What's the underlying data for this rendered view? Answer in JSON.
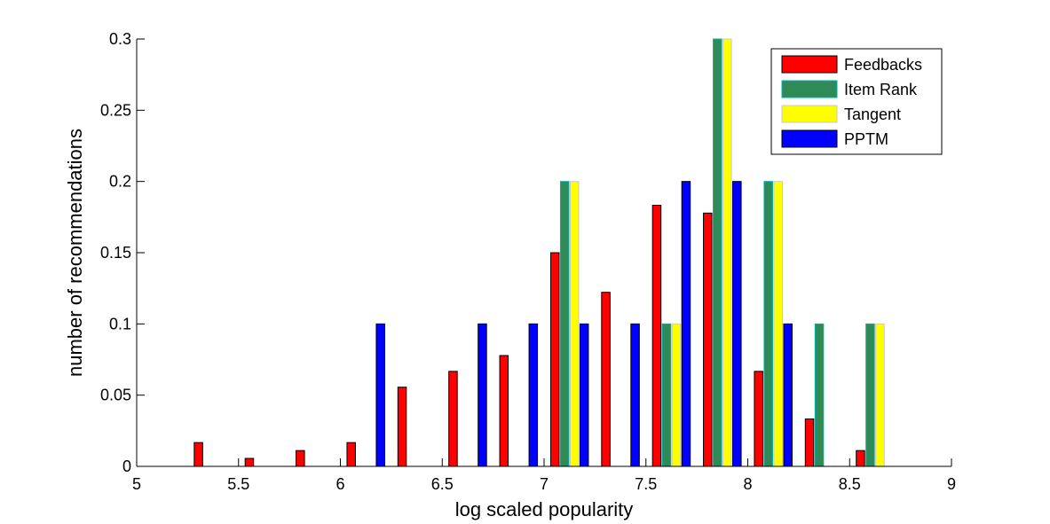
{
  "chart_data": {
    "type": "bar",
    "title": "",
    "xlabel": "log scaled popularity",
    "ylabel": "number of recommendations",
    "xlim": [
      5,
      9
    ],
    "ylim": [
      0,
      0.3
    ],
    "xticks": [
      5,
      5.5,
      6,
      6.5,
      7,
      7.5,
      8,
      8.5,
      9
    ],
    "xtick_labels": [
      "5",
      "5.5",
      "6",
      "6.5",
      "7",
      "7.5",
      "8",
      "8.5",
      "9"
    ],
    "yticks": [
      0,
      0.05,
      0.1,
      0.15,
      0.2,
      0.25,
      0.3
    ],
    "ytick_labels": [
      "0",
      "0.05",
      "0.1",
      "0.15",
      "0.2",
      "0.25",
      "0.3"
    ],
    "grid": false,
    "legend_position": "top-right",
    "x": [
      5.125,
      5.375,
      5.625,
      5.875,
      6.125,
      6.375,
      6.625,
      6.875,
      7.125,
      7.375,
      7.625,
      7.875,
      8.125,
      8.375,
      8.625,
      8.875
    ],
    "series": [
      {
        "name": "Feedbacks",
        "color": "#ff0000",
        "edge": "#000000",
        "values": [
          0,
          0.0167,
          0.0056,
          0.0111,
          0.0167,
          0.0556,
          0.0667,
          0.0778,
          0.15,
          0.1222,
          0.1833,
          0.1778,
          0.0667,
          0.0333,
          0.0111,
          0
        ]
      },
      {
        "name": "Item Rank",
        "color": "#2e8b57",
        "edge": "#00b0b0",
        "values": [
          0,
          0,
          0,
          0,
          0,
          0,
          0,
          0,
          0.2,
          0,
          0.1,
          0.3,
          0.2,
          0.1,
          0.1,
          0
        ]
      },
      {
        "name": "Tangent",
        "color": "#ffff00",
        "edge": "#c8c8c8",
        "values": [
          0,
          0,
          0,
          0,
          0,
          0,
          0,
          0,
          0.2,
          0,
          0.1,
          0.3,
          0.2,
          0,
          0.1,
          0
        ]
      },
      {
        "name": "PPTM",
        "color": "#0000ff",
        "edge": "#000000",
        "values": [
          0,
          0,
          0,
          0,
          0.1,
          0,
          0.1,
          0.1,
          0.1,
          0.1,
          0.2,
          0.2,
          0.1,
          0,
          0,
          0
        ]
      }
    ]
  }
}
